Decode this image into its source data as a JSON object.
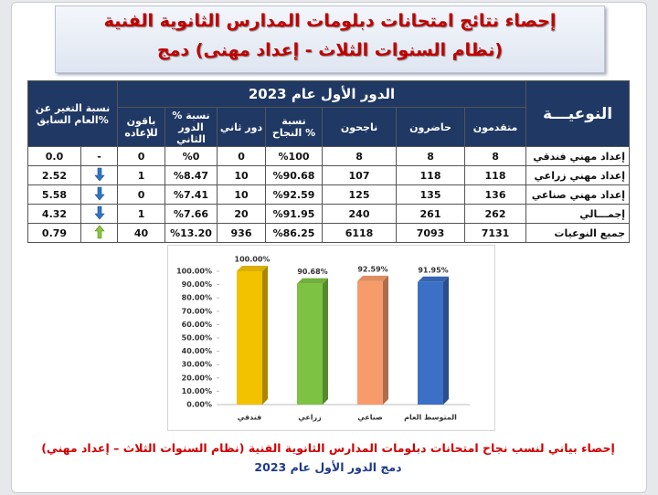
{
  "header": {
    "title_lines": [
      "إحصاء نتائج امتحانات دبلومات المدارس الثانوية الفنية",
      "(نظام السنوات الثلاث - إعداد مهنى) دمج"
    ]
  },
  "table": {
    "change_header": "نسبة التغير عن العام السابق%",
    "group_header": "الدور الأول عام 2023",
    "type_header": "النوعيـــة",
    "columns": [
      "باقون للإعاده",
      "نسبة % الدور الثاني",
      "دور ثاني",
      "نسبة النجاح %",
      "ناجحون",
      "حاضرون",
      "متقدمون"
    ],
    "rows": [
      {
        "change": "0.0",
        "marker": "-",
        "cells": [
          "0",
          "%0",
          "0",
          "%100",
          "8",
          "8",
          "8"
        ],
        "type": "إعداد مهني فندقي"
      },
      {
        "change": "2.52",
        "trend": "down",
        "cells": [
          "1",
          "%8.47",
          "10",
          "%90.68",
          "107",
          "118",
          "118"
        ],
        "type": "إعداد مهني زراعي"
      },
      {
        "change": "5.58",
        "trend": "down",
        "cells": [
          "0",
          "%7.41",
          "10",
          "%92.59",
          "125",
          "135",
          "136"
        ],
        "type": "إعداد مهني صناعي"
      },
      {
        "change": "4.32",
        "trend": "down",
        "cells": [
          "1",
          "%7.66",
          "20",
          "%91.95",
          "240",
          "261",
          "262"
        ],
        "type": "إجمـــالي"
      },
      {
        "change": "0.79",
        "trend": "up",
        "cells": [
          "40",
          "%13.20",
          "936",
          "%86.25",
          "6118",
          "7093",
          "7131"
        ],
        "type": "جميع النوعيات"
      }
    ]
  },
  "chart": {
    "type": "bar",
    "categories": [
      "فندقي",
      "زراعي",
      "صناعي",
      "المتوسط العام"
    ],
    "values": [
      100,
      90.68,
      92.59,
      91.95
    ],
    "value_labels": [
      "100.00%",
      "90.68%",
      "92.59%",
      "91.95%"
    ],
    "colors": [
      "#f2c200",
      "#7dc242",
      "#f79b6b",
      "#3c6fc6"
    ],
    "ylim": [
      0,
      100
    ],
    "yticks": [
      {
        "value": 0,
        "label": "0.00%"
      },
      {
        "value": 10,
        "label": "10.00%"
      },
      {
        "value": 20,
        "label": "20.00%"
      },
      {
        "value": 30,
        "label": "30.00%"
      },
      {
        "value": 40,
        "label": "40.00%"
      },
      {
        "value": 50,
        "label": "50.00%"
      },
      {
        "value": 60,
        "label": "60.00%"
      },
      {
        "value": 70,
        "label": "70.00%"
      },
      {
        "value": 80,
        "label": "80.00%"
      },
      {
        "value": 90,
        "label": "90.00%"
      },
      {
        "value": 100,
        "label": "100.00%"
      }
    ]
  },
  "caption": {
    "lines": [
      "إحصاء بياني لنسب نجاح امتحانات دبلومات المدارس الثانوية الفنية (نظام السنوات الثلاث – إعداد مهني)",
      "دمج الدور الأول عام 2023"
    ]
  }
}
